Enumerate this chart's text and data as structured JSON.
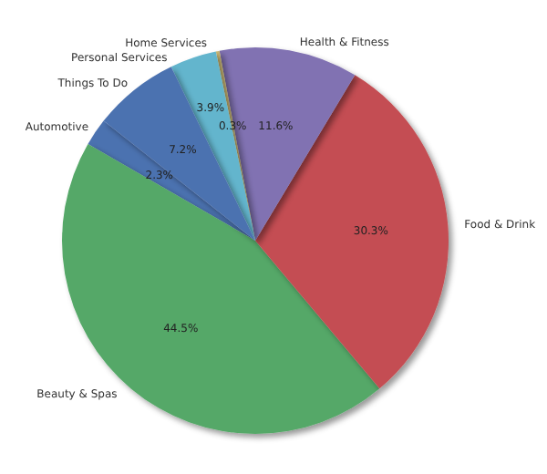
{
  "chart_data": {
    "type": "pie",
    "categories": [
      "Automotive",
      "Beauty & Spas",
      "Food & Drink",
      "Health & Fitness",
      "Home Services",
      "Personal Services",
      "Things To Do"
    ],
    "values": [
      2.3,
      44.5,
      30.3,
      11.6,
      0.3,
      3.9,
      7.2
    ],
    "colors": [
      "#4c72b0",
      "#55a868",
      "#c44e52",
      "#8172b2",
      "#ccb974",
      "#64b5cd",
      "#4c72b0"
    ],
    "value_labels": [
      "2.3%",
      "44.5%",
      "30.3%",
      "11.6%",
      "0.3%",
      "3.9%",
      "7.2%"
    ],
    "data_labels": true
  }
}
